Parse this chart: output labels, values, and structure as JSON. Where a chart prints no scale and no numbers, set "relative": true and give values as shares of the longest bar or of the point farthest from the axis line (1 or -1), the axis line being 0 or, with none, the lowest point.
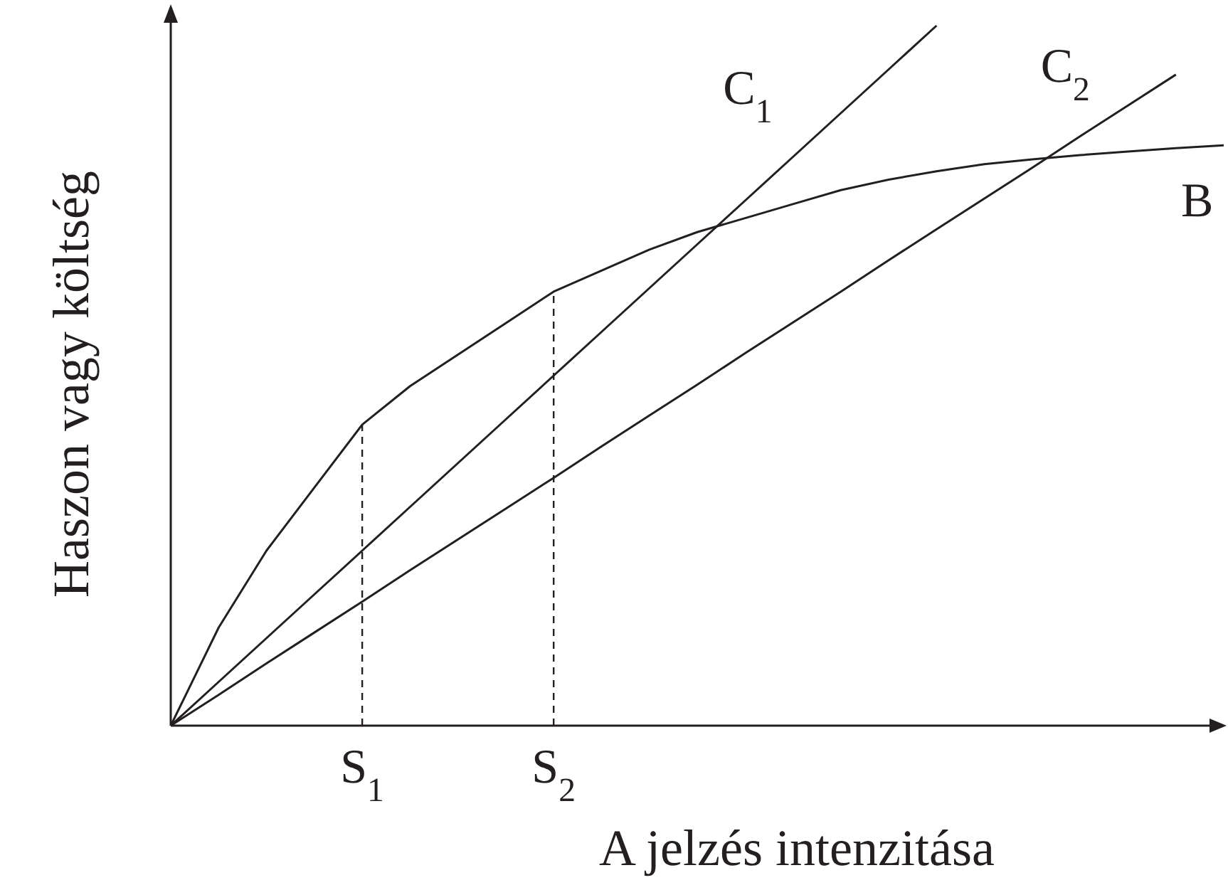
{
  "chart_data": {
    "type": "line",
    "relative": true,
    "xlabel": "A jelzés intenzitása",
    "ylabel": "Haszon vagy költség",
    "categories": [
      null,
      null,
      null,
      null,
      "S$_{1}$",
      null,
      null,
      null,
      "S$_{2}$",
      null,
      null,
      null,
      null,
      null,
      null,
      null,
      null,
      null,
      null,
      null,
      null,
      null,
      null
    ],
    "series": [
      {
        "name": "C$_{1}$",
        "color": "#231f20",
        "values": [
          0,
          0.0625,
          0.125,
          0.1875,
          0.25,
          0.3125,
          0.375,
          0.4375,
          0.5,
          0.5625,
          0.625,
          0.6875,
          0.75,
          0.8125,
          0.875,
          0.9375,
          1,
          null,
          null,
          null,
          null,
          null,
          null
        ]
      },
      {
        "name": "C$_{2}$",
        "color": "#231f20",
        "values": [
          0,
          0.044,
          0.089,
          0.133,
          0.177,
          0.222,
          0.266,
          0.31,
          0.354,
          0.399,
          0.443,
          0.487,
          0.532,
          0.576,
          0.62,
          0.665,
          0.709,
          0.753,
          0.797,
          0.842,
          0.886,
          0.93,
          null
        ]
      },
      {
        "name": "B",
        "color": "#231f20",
        "values": [
          0,
          0.14,
          0.25,
          0.34,
          0.43,
          0.485,
          0.53,
          0.575,
          0.62,
          0.65,
          0.68,
          0.705,
          0.725,
          0.745,
          0.765,
          0.78,
          0.792,
          0.802,
          0.809,
          0.815,
          0.82,
          0.825,
          0.829
        ]
      }
    ],
    "ref_lines": [
      {
        "axis": "x",
        "value": "S$_{1}$",
        "line_style": "dashed"
      },
      {
        "axis": "x",
        "value": "S$_{2}$",
        "line_style": "dashed"
      }
    ]
  }
}
